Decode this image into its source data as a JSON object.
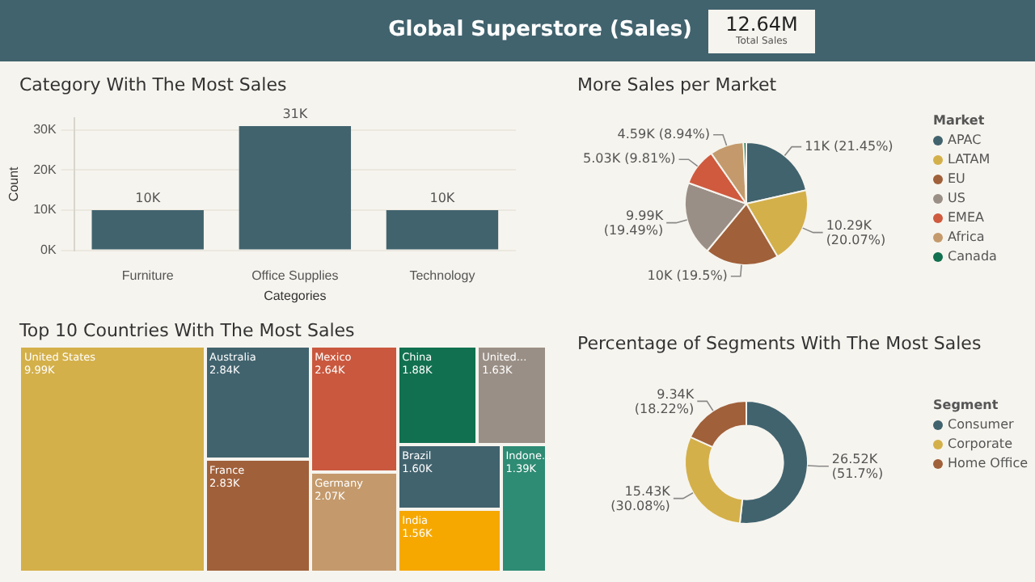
{
  "chart_data": [
    {
      "type": "other",
      "title": "Global Superstore (Sales)",
      "annotations": [
        "12.64M",
        "Total Sales"
      ]
    },
    {
      "type": "bar",
      "title": "Category With The Most Sales",
      "xlabel": "Categories",
      "ylabel": "Count",
      "categories": [
        "Furniture",
        "Office Supplies",
        "Technology"
      ],
      "values": [
        10000,
        31000,
        10000
      ],
      "value_labels": [
        "10K",
        "31K",
        "10K"
      ],
      "color": "#41636e",
      "ylim": [
        0,
        33000
      ],
      "yticks": [
        {
          "value": 0,
          "label": "0K"
        },
        {
          "value": 10000,
          "label": "10K"
        },
        {
          "value": 20000,
          "label": "20K"
        },
        {
          "value": 30000,
          "label": "30K"
        }
      ],
      "grid": "y",
      "legend": false
    },
    {
      "type": "pie",
      "title": "More Sales per Market",
      "legend_title": "Market",
      "legend": "right",
      "categories": [
        "APAC",
        "LATAM",
        "EU",
        "US",
        "EMEA",
        "Africa",
        "Canada"
      ],
      "values": [
        21.45,
        20.07,
        19.5,
        19.49,
        9.81,
        8.94,
        0.74
      ],
      "value_labels": [
        "11K (21.45%)",
        "10.29K (20.07%)",
        "10K (19.5%)",
        "9.99K (19.49%)",
        "5.03K (9.81%)",
        "4.59K (8.94%)",
        null
      ],
      "colors": [
        "#41636e",
        "#d4b04a",
        "#a0603a",
        "#9a8f86",
        "#cf5a3e",
        "#c49a6c",
        "#11704f"
      ]
    },
    {
      "type": "other",
      "title": "Top 10 Countries With The Most Sales",
      "categories": [
        "United States",
        "Australia",
        "France",
        "Mexico",
        "Germany",
        "China",
        "United...",
        "Brazil",
        "India",
        "Indone..."
      ],
      "values": [
        9990,
        2840,
        2830,
        2640,
        2070,
        1880,
        1630,
        1600,
        1560,
        1390
      ],
      "value_labels": [
        "9.99K",
        "2.84K",
        "2.83K",
        "2.64K",
        "2.07K",
        "1.88K",
        "1.63K",
        "1.60K",
        "1.56K",
        "1.39K"
      ],
      "colors": [
        "#d4b04a",
        "#41636e",
        "#a0603a",
        "#c9583e",
        "#c49a6c",
        "#11704f",
        "#9a8f86",
        "#41636e",
        "#f6a800",
        "#2e8b74"
      ]
    },
    {
      "type": "donut",
      "title": "Percentage of Segments With The Most Sales",
      "legend_title": "Segment",
      "legend": "right",
      "categories": [
        "Consumer",
        "Corporate",
        "Home Office"
      ],
      "values": [
        51.7,
        30.08,
        18.22
      ],
      "value_labels": [
        "26.52K (51.7%)",
        "15.43K (30.08%)",
        "9.34K (18.22%)"
      ],
      "colors": [
        "#41636e",
        "#d4b04a",
        "#a0603a"
      ]
    }
  ]
}
